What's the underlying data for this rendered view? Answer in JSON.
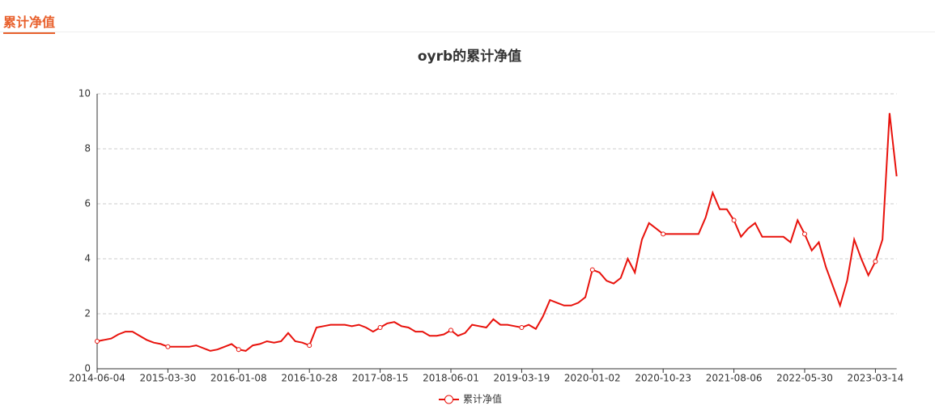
{
  "header": {
    "tab": "累计净值"
  },
  "chart_data": {
    "type": "line",
    "title": "oyrb的累计净值",
    "categories": [
      "2014-06-04",
      null,
      null,
      null,
      null,
      null,
      null,
      null,
      null,
      null,
      "2015-03-30",
      null,
      null,
      null,
      null,
      null,
      null,
      null,
      null,
      null,
      "2016-01-08",
      null,
      null,
      null,
      null,
      null,
      null,
      null,
      null,
      null,
      "2016-10-28",
      null,
      null,
      null,
      null,
      null,
      null,
      null,
      null,
      null,
      "2017-08-15",
      null,
      null,
      null,
      null,
      null,
      null,
      null,
      null,
      null,
      "2018-06-01",
      null,
      null,
      null,
      null,
      null,
      null,
      null,
      null,
      null,
      "2019-03-19",
      null,
      null,
      null,
      null,
      null,
      null,
      null,
      null,
      null,
      "2020-01-02",
      null,
      null,
      null,
      null,
      null,
      null,
      null,
      null,
      null,
      "2020-10-23",
      null,
      null,
      null,
      null,
      null,
      null,
      null,
      null,
      null,
      "2021-08-06",
      null,
      null,
      null,
      null,
      null,
      null,
      null,
      null,
      null,
      "2022-05-30",
      null,
      null,
      null,
      null,
      null,
      null,
      null,
      null,
      null,
      "2023-03-14",
      null,
      null,
      null
    ],
    "series": [
      {
        "name": "累计净值",
        "color": "#e8120c",
        "values": [
          1.0,
          1.05,
          1.1,
          1.25,
          1.35,
          1.35,
          1.2,
          1.05,
          0.95,
          0.9,
          0.8,
          0.8,
          0.8,
          0.8,
          0.85,
          0.75,
          0.65,
          0.7,
          0.8,
          0.9,
          0.7,
          0.65,
          0.85,
          0.9,
          1.0,
          0.95,
          1.0,
          1.3,
          1.0,
          0.95,
          0.85,
          1.5,
          1.55,
          1.6,
          1.6,
          1.6,
          1.55,
          1.6,
          1.5,
          1.35,
          1.5,
          1.65,
          1.7,
          1.55,
          1.5,
          1.35,
          1.35,
          1.2,
          1.2,
          1.25,
          1.4,
          1.2,
          1.3,
          1.6,
          1.55,
          1.5,
          1.8,
          1.6,
          1.6,
          1.55,
          1.5,
          1.6,
          1.45,
          1.9,
          2.5,
          2.4,
          2.3,
          2.3,
          2.4,
          2.6,
          3.6,
          3.5,
          3.2,
          3.1,
          3.3,
          4.0,
          3.5,
          4.7,
          5.3,
          5.1,
          4.9,
          4.9,
          4.9,
          4.9,
          4.9,
          4.9,
          5.5,
          6.4,
          5.8,
          5.8,
          5.4,
          4.8,
          5.1,
          5.3,
          4.8,
          4.8,
          4.8,
          4.8,
          4.6,
          5.4,
          4.9,
          4.3,
          4.6,
          3.7,
          3.0,
          2.3,
          3.2,
          4.7,
          4.0,
          3.4,
          3.9,
          4.7,
          9.3,
          7.0
        ]
      }
    ],
    "ylim": [
      0,
      10
    ],
    "yticks": [
      0,
      2,
      4,
      6,
      8,
      10
    ],
    "grid": true
  }
}
